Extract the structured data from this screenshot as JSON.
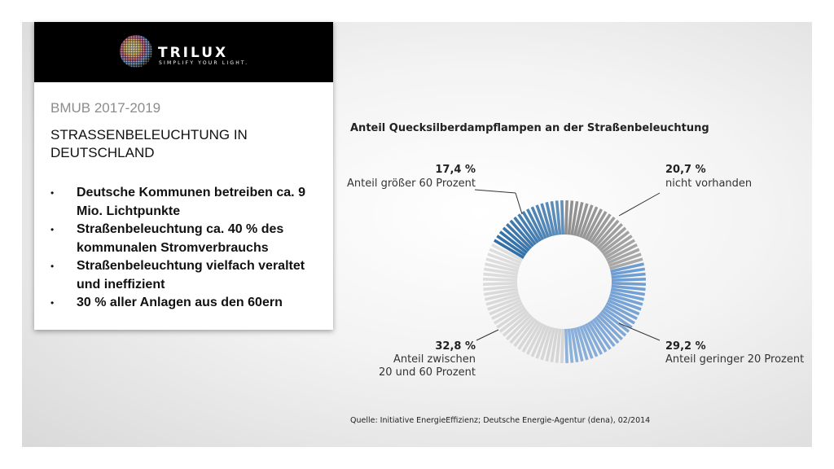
{
  "logo": {
    "brand": "TRILUX",
    "tagline": "SIMPLIFY YOUR LIGHT."
  },
  "panel": {
    "subtitle": "BMUB 2017-2019",
    "title": "STRASSENBELEUCHTUNG IN DEUTSCHLAND",
    "bullets": [
      "Deutsche Kommunen betreiben ca. 9 Mio. Lichtpunkte",
      "Straßenbeleuchtung ca. 40 % des kommunalen Stromverbrauchs",
      "Straßenbeleuchtung vielfach veraltet und ineffizient",
      "30 % aller Anlagen aus den 60ern"
    ]
  },
  "chart_data": {
    "type": "pie",
    "title": "Anteil Quecksilberdampflampen an der Straßenbeleuchtung",
    "style": "donut",
    "segments": [
      {
        "value": 20.7,
        "label": "20,7 %",
        "name": "nicht vorhanden",
        "color": "#8e8e8e"
      },
      {
        "value": 29.2,
        "label": "29,2 %",
        "name": "Anteil geringer 20 Prozent",
        "color": "#6b9bd2"
      },
      {
        "value": 32.8,
        "label": "32,8 %",
        "name": "Anteil zwischen 20 und 60 Prozent",
        "color": "#d4d4d4"
      },
      {
        "value": 17.4,
        "label": "17,4 %",
        "name": "Anteil größer 60 Prozent",
        "color": "#2e6da6"
      }
    ],
    "source": "Quelle: Initiative EnergieEffizienz; Deutsche Energie-Agentur (dena), 02/2014"
  }
}
